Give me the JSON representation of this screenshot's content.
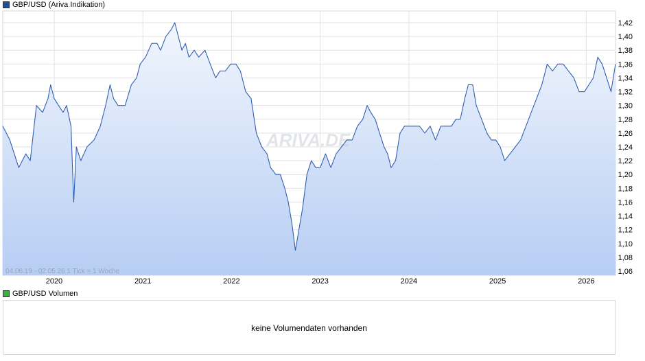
{
  "legend": {
    "main_label": "GBP/USD (Ariva Indikation)",
    "main_color": "#1f4e9e",
    "volume_label": "GBP/USD Volumen",
    "volume_color": "#3cb043"
  },
  "range_note": "04.06.19 - 02.05.26   1 Tick = 1 Woche",
  "watermark": "ARIVA.DE",
  "volume": {
    "message": "keine Volumendaten vorhanden"
  },
  "chart_data": {
    "type": "area",
    "title": "",
    "series": [
      {
        "name": "GBP/USD (Ariva Indikation)",
        "color": "#2f5fb3",
        "x": [
          2019.42,
          2019.5,
          2019.6,
          2019.68,
          2019.73,
          2019.8,
          2019.87,
          2019.93,
          2019.96,
          2020.0,
          2020.05,
          2020.1,
          2020.14,
          2020.19,
          2020.22,
          2020.25,
          2020.3,
          2020.37,
          2020.45,
          2020.52,
          2020.58,
          2020.63,
          2020.67,
          2020.72,
          2020.8,
          2020.87,
          2020.93,
          2020.97,
          2021.03,
          2021.1,
          2021.16,
          2021.2,
          2021.26,
          2021.32,
          2021.36,
          2021.4,
          2021.44,
          2021.48,
          2021.52,
          2021.58,
          2021.63,
          2021.7,
          2021.76,
          2021.82,
          2021.87,
          2021.93,
          2021.99,
          2022.05,
          2022.1,
          2022.16,
          2022.22,
          2022.28,
          2022.34,
          2022.4,
          2022.44,
          2022.5,
          2022.55,
          2022.6,
          2022.64,
          2022.68,
          2022.72,
          2022.76,
          2022.8,
          2022.85,
          2022.9,
          2022.95,
          2023.0,
          2023.06,
          2023.12,
          2023.18,
          2023.24,
          2023.3,
          2023.36,
          2023.42,
          2023.48,
          2023.53,
          2023.57,
          2023.62,
          2023.67,
          2023.72,
          2023.76,
          2023.8,
          2023.85,
          2023.9,
          2023.95,
          2024.0,
          2024.06,
          2024.12,
          2024.18,
          2024.24,
          2024.3,
          2024.36,
          2024.42,
          2024.48,
          2024.53,
          2024.58,
          2024.63,
          2024.67,
          2024.72,
          2024.76,
          2024.82,
          2024.88,
          2024.93,
          2024.98,
          2025.03,
          2025.08,
          2025.14,
          2025.2,
          2025.26,
          2025.32,
          2025.38,
          2025.44,
          2025.5,
          2025.56,
          2025.62,
          2025.68,
          2025.74,
          2025.8,
          2025.86,
          2025.92,
          2025.98,
          2026.03,
          2026.08,
          2026.13,
          2026.18,
          2026.23,
          2026.28,
          2026.33
        ],
        "values": [
          1.27,
          1.25,
          1.21,
          1.23,
          1.22,
          1.3,
          1.29,
          1.31,
          1.33,
          1.31,
          1.3,
          1.29,
          1.3,
          1.27,
          1.16,
          1.24,
          1.22,
          1.24,
          1.25,
          1.27,
          1.3,
          1.33,
          1.31,
          1.3,
          1.3,
          1.33,
          1.34,
          1.36,
          1.37,
          1.39,
          1.39,
          1.38,
          1.4,
          1.41,
          1.42,
          1.4,
          1.38,
          1.39,
          1.37,
          1.38,
          1.37,
          1.38,
          1.36,
          1.34,
          1.35,
          1.35,
          1.36,
          1.36,
          1.35,
          1.32,
          1.31,
          1.26,
          1.24,
          1.23,
          1.21,
          1.2,
          1.2,
          1.18,
          1.16,
          1.13,
          1.09,
          1.12,
          1.15,
          1.2,
          1.22,
          1.21,
          1.21,
          1.23,
          1.21,
          1.23,
          1.24,
          1.25,
          1.25,
          1.27,
          1.28,
          1.3,
          1.29,
          1.28,
          1.26,
          1.24,
          1.23,
          1.21,
          1.22,
          1.26,
          1.27,
          1.27,
          1.27,
          1.27,
          1.26,
          1.27,
          1.25,
          1.27,
          1.27,
          1.27,
          1.28,
          1.28,
          1.31,
          1.33,
          1.33,
          1.3,
          1.28,
          1.26,
          1.25,
          1.25,
          1.24,
          1.22,
          1.23,
          1.24,
          1.25,
          1.27,
          1.29,
          1.31,
          1.33,
          1.36,
          1.35,
          1.36,
          1.36,
          1.35,
          1.34,
          1.32,
          1.32,
          1.33,
          1.34,
          1.37,
          1.36,
          1.34,
          1.32,
          1.36
        ],
        "last_label_value": 1.36
      }
    ],
    "xlabel": "",
    "ylabel": "",
    "xlim": [
      2019.42,
      2026.33
    ],
    "ylim": [
      1.05,
      1.43
    ],
    "y_ticks": [
      "1,42",
      "1,40",
      "1,38",
      "1,36",
      "1,34",
      "1,32",
      "1,30",
      "1,28",
      "1,26",
      "1,24",
      "1,22",
      "1,20",
      "1,18",
      "1,16",
      "1,14",
      "1,12",
      "1,10",
      "1,08",
      "1,06"
    ],
    "y_tick_values": [
      1.42,
      1.4,
      1.38,
      1.36,
      1.34,
      1.32,
      1.3,
      1.28,
      1.26,
      1.24,
      1.22,
      1.2,
      1.18,
      1.16,
      1.14,
      1.12,
      1.1,
      1.08,
      1.06
    ],
    "x_ticks": [
      "2020",
      "2021",
      "2022",
      "2023",
      "2024",
      "2025",
      "2026"
    ],
    "x_tick_values": [
      2020.0,
      2021.0,
      2022.0,
      2023.0,
      2024.0,
      2025.0,
      2026.0
    ],
    "grid": true,
    "legend_position": "top-left"
  }
}
